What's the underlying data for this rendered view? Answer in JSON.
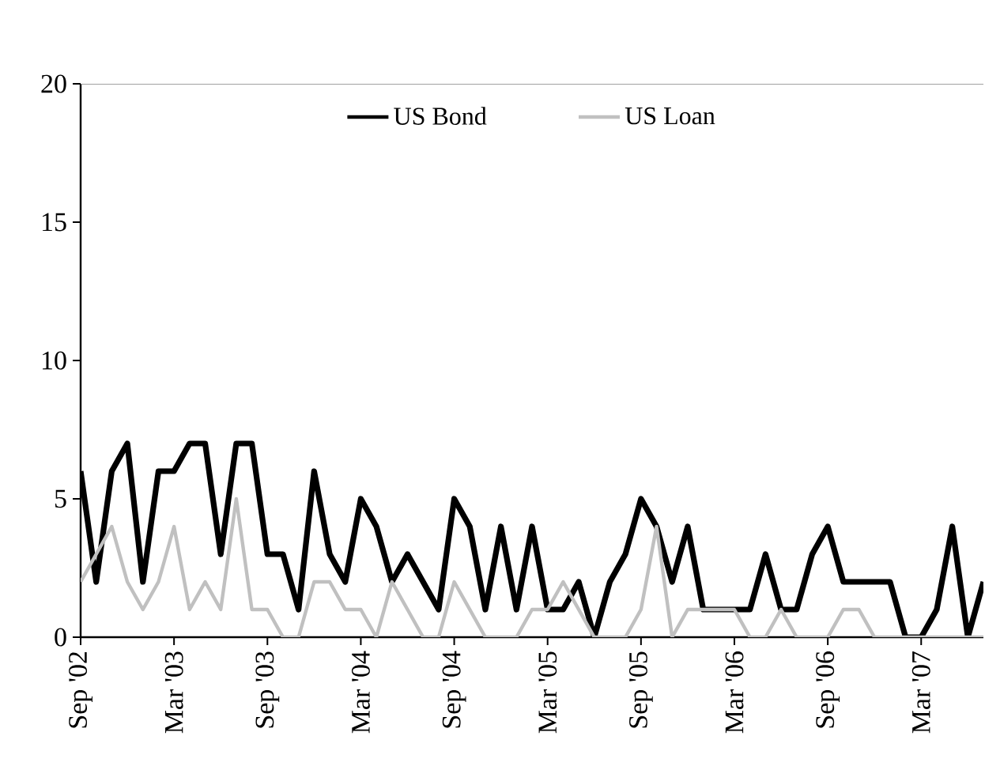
{
  "chart_data": {
    "type": "line",
    "x": [
      "2002-09",
      "2002-10",
      "2002-11",
      "2002-12",
      "2003-01",
      "2003-02",
      "2003-03",
      "2003-04",
      "2003-05",
      "2003-06",
      "2003-07",
      "2003-08",
      "2003-09",
      "2003-10",
      "2003-11",
      "2003-12",
      "2004-01",
      "2004-02",
      "2004-03",
      "2004-04",
      "2004-05",
      "2004-06",
      "2004-07",
      "2004-08",
      "2004-09",
      "2004-10",
      "2004-11",
      "2004-12",
      "2005-01",
      "2005-02",
      "2005-03",
      "2005-04",
      "2005-05",
      "2005-06",
      "2005-07",
      "2005-08",
      "2005-09",
      "2005-10",
      "2005-11",
      "2005-12",
      "2006-01",
      "2006-02",
      "2006-03",
      "2006-04",
      "2006-05",
      "2006-06",
      "2006-07",
      "2006-08",
      "2006-09",
      "2006-10",
      "2006-11",
      "2006-12",
      "2007-01",
      "2007-02",
      "2007-03",
      "2007-04",
      "2007-05",
      "2007-06",
      "2007-07"
    ],
    "series": [
      {
        "name": "US Bond",
        "color": "#000000",
        "values": [
          6,
          2,
          6,
          7,
          2,
          6,
          6,
          7,
          7,
          3,
          7,
          7,
          3,
          3,
          1,
          6,
          3,
          2,
          5,
          4,
          2,
          3,
          2,
          1,
          5,
          4,
          1,
          4,
          1,
          4,
          1,
          1,
          2,
          0,
          2,
          3,
          5,
          4,
          2,
          4,
          1,
          1,
          1,
          1,
          3,
          1,
          1,
          3,
          4,
          2,
          2,
          2,
          2,
          0,
          0,
          1,
          4,
          0,
          2
        ]
      },
      {
        "name": "US Loan",
        "color": "#c0c0c0",
        "values": [
          2,
          3,
          4,
          2,
          1,
          2,
          4,
          1,
          2,
          1,
          5,
          1,
          1,
          0,
          0,
          2,
          2,
          1,
          1,
          0,
          2,
          1,
          0,
          0,
          2,
          1,
          0,
          0,
          0,
          1,
          1,
          2,
          1,
          0,
          0,
          0,
          1,
          4,
          0,
          1,
          1,
          1,
          1,
          0,
          0,
          1,
          0,
          0,
          0,
          1,
          1,
          0,
          0,
          0,
          0,
          0,
          0,
          0,
          0
        ]
      }
    ],
    "xlim": [
      "2002-09",
      "2007-07"
    ],
    "xticks": [
      {
        "value": "2002-09",
        "label": "Sep '02"
      },
      {
        "value": "2003-03",
        "label": "Mar '03"
      },
      {
        "value": "2003-09",
        "label": "Sep '03"
      },
      {
        "value": "2004-03",
        "label": "Mar '04"
      },
      {
        "value": "2004-09",
        "label": "Sep '04"
      },
      {
        "value": "2005-03",
        "label": "Mar '05"
      },
      {
        "value": "2005-09",
        "label": "Sep '05"
      },
      {
        "value": "2006-03",
        "label": "Mar '06"
      },
      {
        "value": "2006-09",
        "label": "Sep '06"
      },
      {
        "value": "2007-03",
        "label": "Mar '07"
      }
    ],
    "ylim": [
      0,
      20
    ],
    "yticks": [
      0,
      5,
      10,
      15,
      20
    ],
    "legend": "top"
  }
}
